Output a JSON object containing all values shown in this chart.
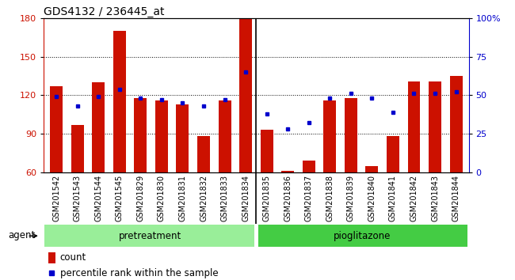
{
  "title": "GDS4132 / 236445_at",
  "categories": [
    "GSM201542",
    "GSM201543",
    "GSM201544",
    "GSM201545",
    "GSM201829",
    "GSM201830",
    "GSM201831",
    "GSM201832",
    "GSM201833",
    "GSM201834",
    "GSM201835",
    "GSM201836",
    "GSM201837",
    "GSM201838",
    "GSM201839",
    "GSM201840",
    "GSM201841",
    "GSM201842",
    "GSM201843",
    "GSM201844"
  ],
  "bar_values": [
    127,
    97,
    130,
    170,
    118,
    116,
    113,
    88,
    116,
    180,
    93,
    61,
    69,
    116,
    118,
    65,
    88,
    131,
    131,
    135
  ],
  "dot_percentile": [
    49,
    43,
    49,
    54,
    48,
    47,
    45,
    43,
    47,
    65,
    38,
    28,
    32,
    48,
    51,
    48,
    39,
    51,
    51,
    52
  ],
  "ylim_left": [
    60,
    180
  ],
  "ylim_right": [
    0,
    100
  ],
  "yticks_left": [
    60,
    90,
    120,
    150,
    180
  ],
  "yticks_right": [
    0,
    25,
    50,
    75,
    100
  ],
  "bar_color": "#CC1100",
  "dot_color": "#0000CC",
  "pretreatment_color": "#99EE99",
  "pioglitazone_color": "#44CC44",
  "xtick_bg_color": "#C8C8C8",
  "pretreatment_label": "pretreatment",
  "pioglitazone_label": "pioglitazone",
  "pretreatment_count": 10,
  "pioglitazone_count": 10,
  "agent_label": "agent",
  "legend_bar_label": "count",
  "legend_dot_label": "percentile rank within the sample",
  "bar_width": 0.6,
  "title_fontsize": 10,
  "tick_fontsize": 7.0
}
